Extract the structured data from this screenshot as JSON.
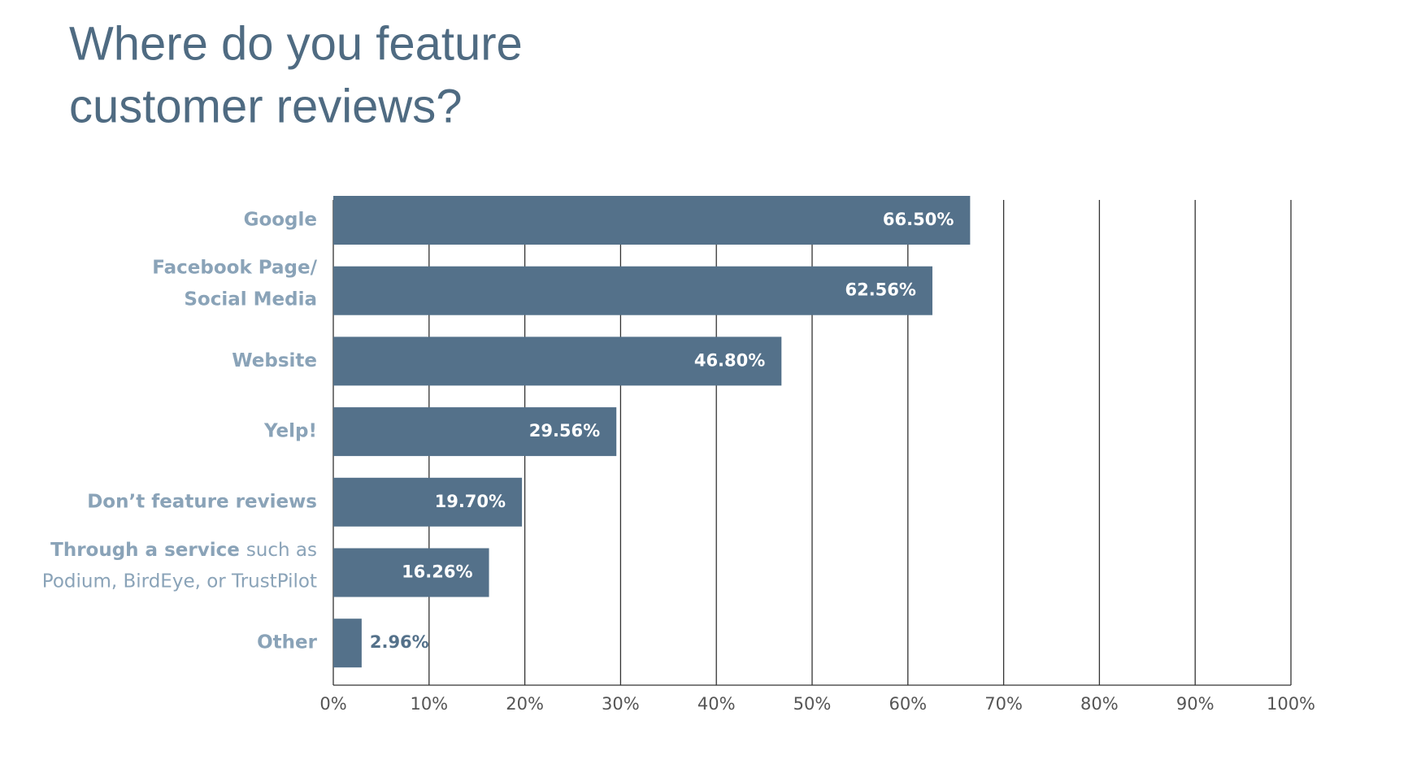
{
  "chart_data": {
    "type": "bar",
    "orientation": "horizontal",
    "title": [
      "Where do you feature",
      "customer reviews?"
    ],
    "categories": [
      "Google",
      [
        "Facebook Page/",
        "Social Media"
      ],
      "Website",
      "Yelp!",
      "Don’t feature reviews",
      [
        [
          "Through a service",
          "such as"
        ],
        "Podium, BirdEye, or TrustPilot"
      ],
      "Other"
    ],
    "values": [
      66.5,
      62.56,
      46.8,
      29.56,
      19.7,
      16.26,
      2.96
    ],
    "value_labels": [
      "66.50%",
      "62.56%",
      "46.80%",
      "29.56%",
      "19.70%",
      "16.26%",
      "2.96%"
    ],
    "color": "#54718a",
    "xlim": [
      0,
      100
    ],
    "xticks": [
      {
        "value": 0,
        "label": "0%"
      },
      {
        "value": 10,
        "label": "10%"
      },
      {
        "value": 20,
        "label": "20%"
      },
      {
        "value": 30,
        "label": "30%"
      },
      {
        "value": 40,
        "label": "40%"
      },
      {
        "value": 50,
        "label": "50%"
      },
      {
        "value": 60,
        "label": "60%"
      },
      {
        "value": 70,
        "label": "70%"
      },
      {
        "value": 80,
        "label": "80%"
      },
      {
        "value": 90,
        "label": "90%"
      },
      {
        "value": 100,
        "label": "100%"
      }
    ],
    "grid": true
  }
}
